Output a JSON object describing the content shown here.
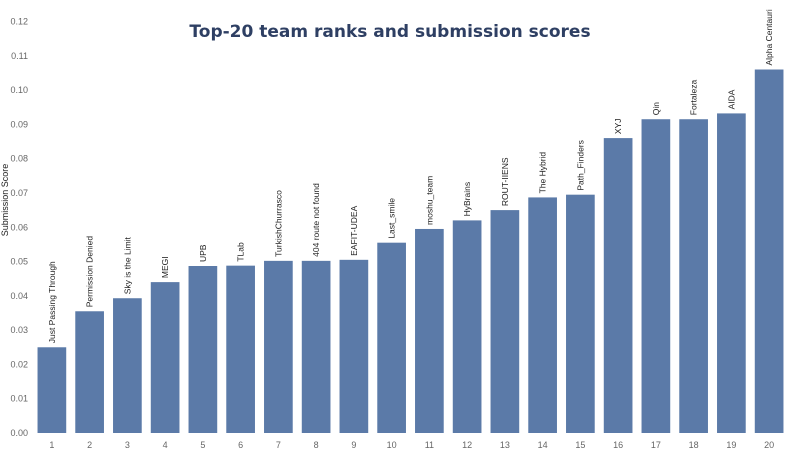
{
  "chart_data": {
    "type": "bar",
    "title": "Top-20 team ranks and submission scores",
    "xlabel": "",
    "ylabel": "Submission Score",
    "ylim": [
      0,
      0.12
    ],
    "yticks": [
      "0.00",
      "0.01",
      "0.02",
      "0.03",
      "0.04",
      "0.05",
      "0.06",
      "0.07",
      "0.08",
      "0.09",
      "0.10",
      "0.11",
      "0.12"
    ],
    "grid": false,
    "color": "#5b7aa8",
    "categories": [
      "1",
      "2",
      "3",
      "4",
      "5",
      "6",
      "7",
      "8",
      "9",
      "10",
      "11",
      "12",
      "13",
      "14",
      "15",
      "16",
      "17",
      "18",
      "19",
      "20"
    ],
    "bar_labels": [
      "Just Passing Through",
      "Permission Denied",
      "Sky is the Limit",
      "MEGI",
      "UPB",
      "TLab",
      "TurkishChurrasco",
      "404 route not found",
      "EAFIT-UDEA",
      "Last_smile",
      "moshu_team",
      "HyBrains",
      "ROUT-IIENS",
      "The Hybrid",
      "Path_Finders",
      "XYJ",
      "Qin",
      "Fortaleza",
      "AIDA",
      "Alpha Centauri"
    ],
    "values": [
      0.025,
      0.0355,
      0.0393,
      0.044,
      0.0487,
      0.0488,
      0.0502,
      0.0502,
      0.0505,
      0.0555,
      0.0595,
      0.062,
      0.065,
      0.0687,
      0.0695,
      0.086,
      0.0915,
      0.0915,
      0.0932,
      0.106
    ]
  }
}
